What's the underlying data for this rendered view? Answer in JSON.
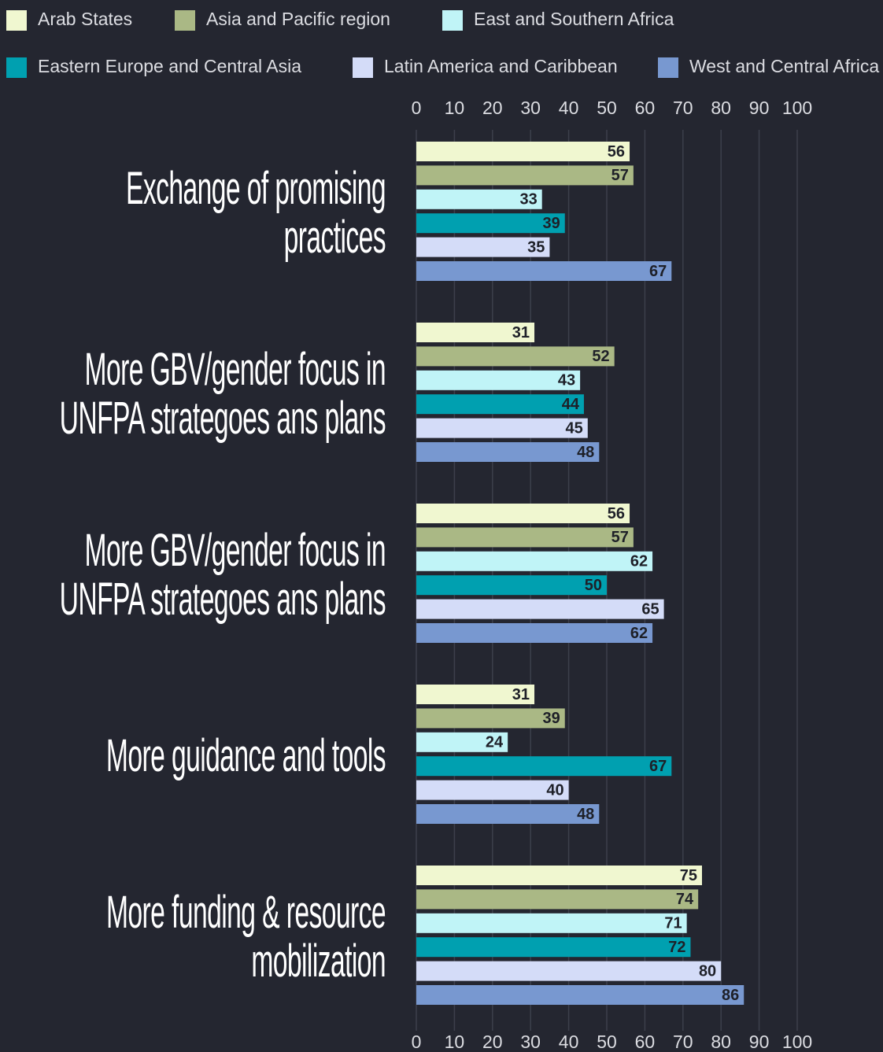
{
  "chart_data": {
    "type": "hbar",
    "categories": [
      "Exchange of promising practices",
      "More GBV/gender focus in UNFPA strategoes ans plans",
      "More GBV/gender focus in UNFPA strategoes ans plans",
      "More guidance and tools",
      "More funding & resource mobilization"
    ],
    "series": [
      {
        "name": "Arab States",
        "color": "#f0f7d0",
        "values": [
          56,
          31,
          56,
          31,
          75
        ]
      },
      {
        "name": "Asia and Pacific region",
        "color": "#aab885",
        "values": [
          57,
          52,
          57,
          39,
          74
        ]
      },
      {
        "name": "East and Southern Africa",
        "color": "#c0f4f7",
        "values": [
          33,
          43,
          62,
          24,
          71
        ]
      },
      {
        "name": "Eastern Europe and Central Asia",
        "color": "#00a0b0",
        "values": [
          39,
          44,
          50,
          67,
          72
        ]
      },
      {
        "name": "Latin America and Caribbean",
        "color": "#d4dcf8",
        "values": [
          35,
          45,
          65,
          40,
          80
        ]
      },
      {
        "name": "West and Central Africa",
        "color": "#7898d0",
        "values": [
          67,
          48,
          62,
          48,
          86
        ]
      }
    ],
    "xlim": [
      0,
      100
    ],
    "xticks": [
      0,
      10,
      20,
      30,
      40,
      50,
      60,
      70,
      80,
      90,
      100
    ],
    "grid": true
  }
}
